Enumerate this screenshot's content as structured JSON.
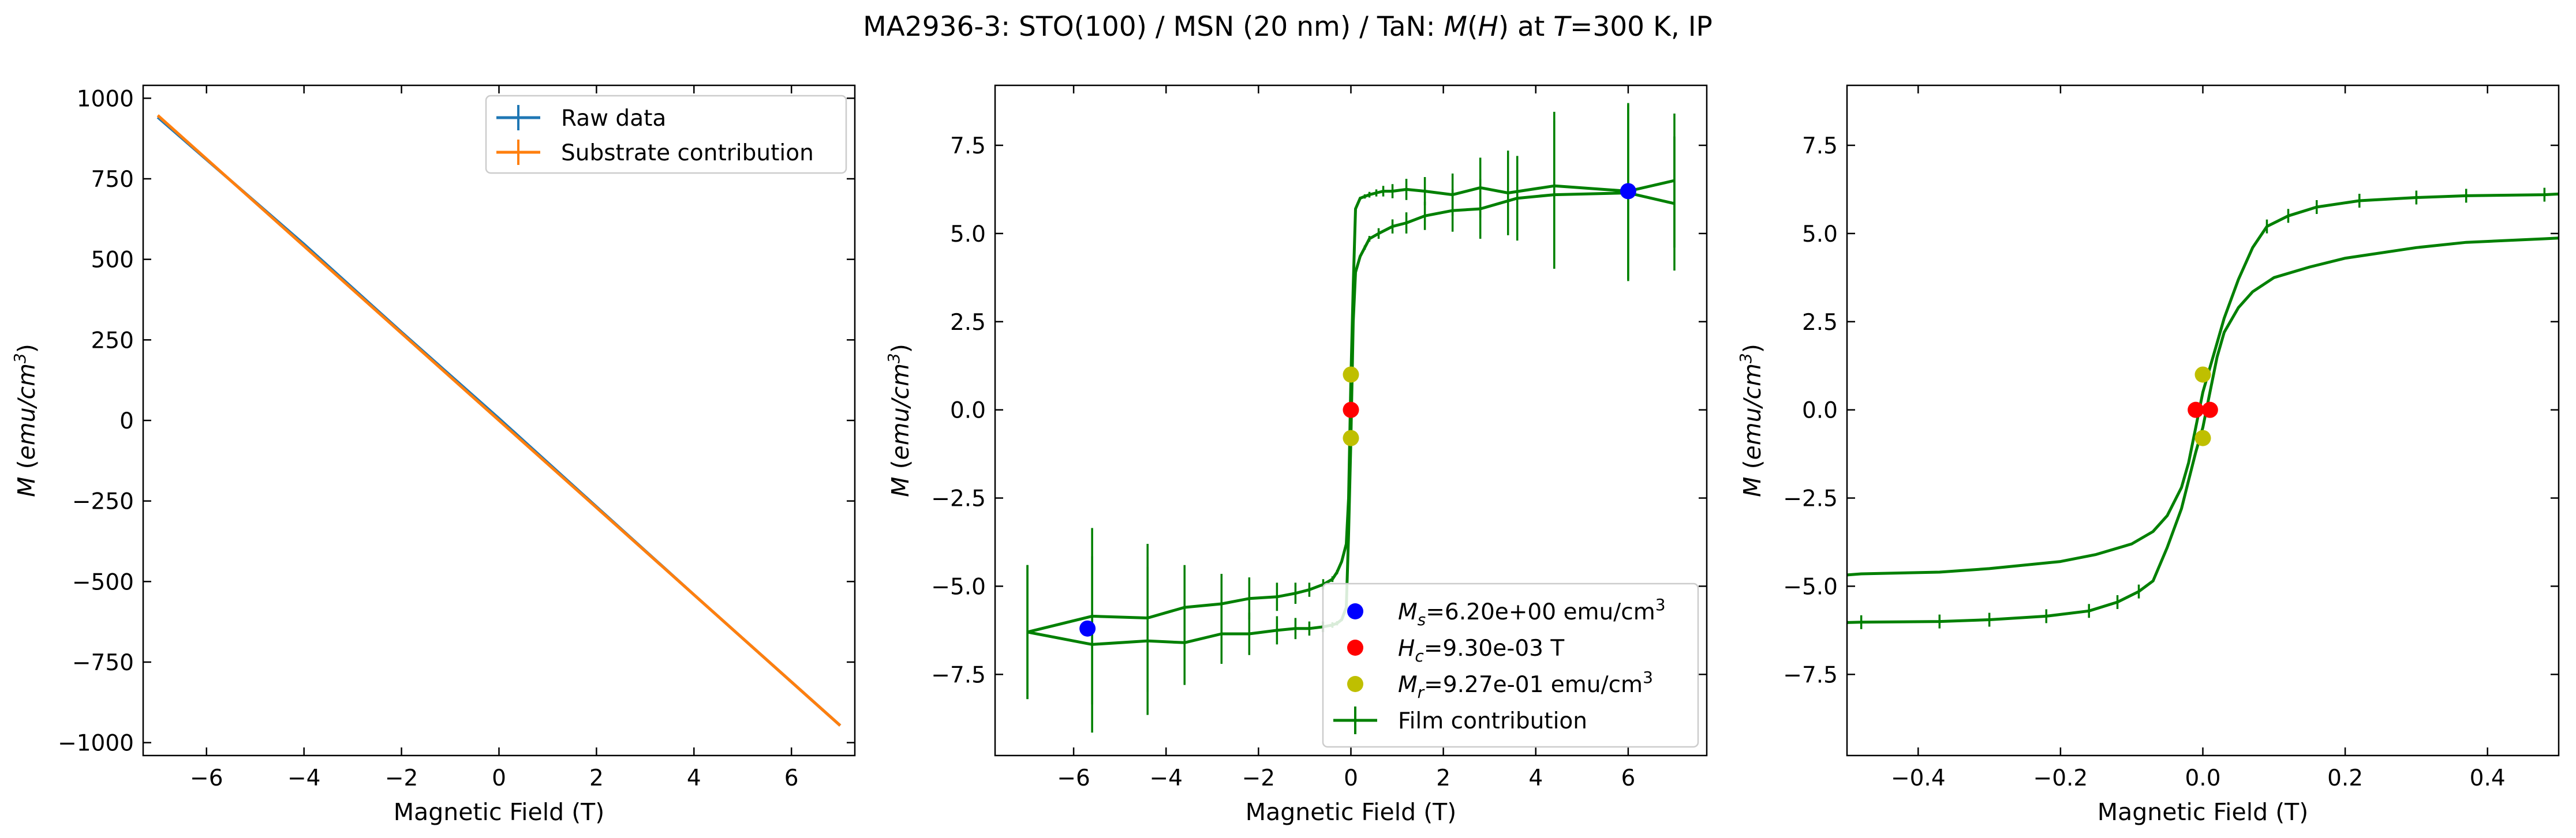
{
  "figure": {
    "title_parts": [
      "MA2936-3: STO(100)  / MSN (20 nm) / TaN: ",
      "M",
      "(",
      "H",
      ") at ",
      "T",
      "=300 K, IP"
    ]
  },
  "colors": {
    "raw": "#1f77b4",
    "substrate": "#ff7f0e",
    "film": "#008000",
    "ms": "#0000ff",
    "hc": "#ff0000",
    "mr": "#bfbf00"
  },
  "chart_data": [
    {
      "type": "line",
      "xlabel": "Magnetic Field (T)",
      "ylabel_parts": [
        "M",
        " (",
        "emu/cm",
        "3",
        ")"
      ],
      "xlim": [
        -7.3,
        7.3
      ],
      "ylim": [
        -1040,
        1040
      ],
      "xticks": [
        -6,
        -4,
        -2,
        0,
        2,
        4,
        6
      ],
      "xtick_labels": [
        "−6",
        "−4",
        "−2",
        "0",
        "2",
        "4",
        "6"
      ],
      "yticks": [
        -1000,
        -750,
        -500,
        -250,
        0,
        250,
        500,
        750,
        1000
      ],
      "ytick_labels": [
        "−1000",
        "−750",
        "−500",
        "−250",
        "0",
        "250",
        "500",
        "750",
        "1000"
      ],
      "legend": {
        "placement": "top-right",
        "entries": [
          "Raw data",
          "Substrate contribution"
        ]
      },
      "series": [
        {
          "name": "Raw data",
          "x": [
            -7,
            -4,
            -2,
            0,
            2,
            4,
            7
          ],
          "y": [
            941,
            547,
            274,
            6,
            -268,
            -541,
            -947
          ]
        },
        {
          "name": "Substrate contribution",
          "x": [
            -7,
            7
          ],
          "y": [
            947,
            -947
          ]
        }
      ]
    },
    {
      "type": "line",
      "xlabel": "Magnetic Field (T)",
      "ylabel_parts": [
        "M",
        " (",
        "emu/cm",
        "3",
        ")"
      ],
      "xlim": [
        -7.7,
        7.7
      ],
      "ylim": [
        -9.8,
        9.2
      ],
      "xticks": [
        -6,
        -4,
        -2,
        0,
        2,
        4,
        6
      ],
      "xtick_labels": [
        "−6",
        "−4",
        "−2",
        "0",
        "2",
        "4",
        "6"
      ],
      "yticks": [
        -7.5,
        -5,
        -2.5,
        0,
        2.5,
        5,
        7.5
      ],
      "ytick_labels": [
        "−7.5",
        "−5.0",
        "−2.5",
        "0.0",
        "2.5",
        "5.0",
        "7.5"
      ],
      "legend": {
        "placement": "bottom-right",
        "entries": [
          [
            "M",
            "s",
            "=6.20e+00 emu/cm",
            "3"
          ],
          [
            "H",
            "c",
            "=9.30e-03 T",
            ""
          ],
          [
            "M",
            "r",
            "=9.27e-01 emu/cm",
            "3"
          ],
          [
            "Film contribution",
            "",
            "",
            ""
          ]
        ]
      },
      "series": [
        {
          "name": "Film contribution (descending)",
          "x": [
            7.0,
            6.0,
            4.4,
            3.4,
            2.8,
            2.2,
            1.6,
            1.2,
            0.9,
            0.7,
            0.55,
            0.4,
            0.3,
            0.2,
            0.1,
            0.05,
            0.0,
            -0.05,
            -0.1,
            -0.2,
            -0.3,
            -0.4,
            -0.6,
            -0.9,
            -1.2,
            -1.6,
            -2.2,
            -2.8,
            -3.6,
            -4.4,
            -5.6,
            -7.0
          ],
          "y": [
            6.5,
            6.2,
            6.35,
            6.15,
            6.3,
            6.1,
            6.2,
            6.25,
            6.2,
            6.2,
            6.15,
            6.1,
            6.05,
            6.0,
            5.7,
            3.5,
            0.9,
            -2.5,
            -3.8,
            -4.3,
            -4.6,
            -4.8,
            -4.95,
            -5.1,
            -5.2,
            -5.3,
            -5.35,
            -5.5,
            -5.6,
            -5.9,
            -5.85,
            -6.3
          ],
          "yerr": [
            1.9,
            2.5,
            2.1,
            1.2,
            0.85,
            0.6,
            0.4,
            0.3,
            0.2,
            0.15,
            0.1,
            0.08,
            0.06,
            0.04,
            0.03,
            0.02,
            0.02,
            0.02,
            0.03,
            0.04,
            0.06,
            0.08,
            0.15,
            0.2,
            0.3,
            0.4,
            0.6,
            0.85,
            1.2,
            2.1,
            2.5,
            1.9
          ]
        },
        {
          "name": "Film contribution (ascending)",
          "x": [
            -7.0,
            -5.6,
            -4.4,
            -3.6,
            -2.8,
            -2.2,
            -1.6,
            -1.2,
            -0.9,
            -0.6,
            -0.4,
            -0.3,
            -0.2,
            -0.1,
            -0.05,
            0.0,
            0.05,
            0.1,
            0.2,
            0.3,
            0.4,
            0.6,
            0.9,
            1.2,
            1.6,
            2.2,
            2.8,
            3.6,
            4.4,
            6.0,
            7.0
          ],
          "y": [
            -6.3,
            -6.65,
            -6.55,
            -6.6,
            -6.35,
            -6.35,
            -6.25,
            -6.2,
            -6.2,
            -6.15,
            -6.1,
            -6.05,
            -5.95,
            -5.6,
            -3.5,
            -0.8,
            2.5,
            3.9,
            4.35,
            4.6,
            4.85,
            5.0,
            5.2,
            5.3,
            5.5,
            5.65,
            5.7,
            6.0,
            6.1,
            6.15,
            5.85
          ],
          "yerr": [
            1.9,
            2.5,
            2.1,
            1.2,
            0.85,
            0.6,
            0.4,
            0.3,
            0.2,
            0.15,
            0.08,
            0.06,
            0.04,
            0.03,
            0.02,
            0.02,
            0.02,
            0.03,
            0.04,
            0.06,
            0.08,
            0.15,
            0.2,
            0.3,
            0.4,
            0.6,
            0.85,
            1.2,
            2.1,
            2.5,
            1.9
          ]
        }
      ],
      "points": {
        "ms": [
          [
            6.0,
            6.2
          ],
          [
            -5.7,
            -6.2
          ]
        ],
        "hc": [
          [
            0.0,
            0.0
          ]
        ],
        "mr": [
          [
            0.0,
            1.0
          ],
          [
            0.0,
            -0.8
          ]
        ]
      }
    },
    {
      "type": "line",
      "xlabel": "Magnetic Field (T)",
      "ylabel_parts": [
        "M",
        " (",
        "emu/cm",
        "3",
        ")"
      ],
      "xlim": [
        -0.5,
        0.5
      ],
      "ylim": [
        -9.8,
        9.2
      ],
      "xticks": [
        -0.4,
        -0.2,
        0,
        0.2,
        0.4
      ],
      "xtick_labels": [
        "−0.4",
        "−0.2",
        "0.0",
        "0.2",
        "0.4"
      ],
      "yticks": [
        -7.5,
        -5,
        -2.5,
        0,
        2.5,
        5,
        7.5
      ],
      "ytick_labels": [
        "−7.5",
        "−5.0",
        "−2.5",
        "0.0",
        "2.5",
        "5.0",
        "7.5"
      ],
      "series": [
        {
          "name": "Film contribution (upper branch)",
          "x": [
            0.5,
            0.48,
            0.37,
            0.3,
            0.22,
            0.16,
            0.12,
            0.09,
            0.07,
            0.05,
            0.03,
            0.02,
            0.01,
            0.0,
            -0.01,
            -0.02,
            -0.03,
            -0.05,
            -0.07,
            -0.1,
            -0.15,
            -0.2,
            -0.3,
            -0.37,
            -0.48,
            -0.5
          ],
          "y": [
            6.12,
            6.1,
            6.07,
            6.02,
            5.93,
            5.75,
            5.5,
            5.2,
            4.6,
            3.7,
            2.6,
            1.9,
            1.2,
            0.5,
            -0.5,
            -1.5,
            -2.2,
            -3.0,
            -3.45,
            -3.8,
            -4.1,
            -4.3,
            -4.5,
            -4.6,
            -4.65,
            -4.68
          ],
          "errx": [
            0.48,
            0.37,
            0.3,
            0.22,
            0.16,
            0.12,
            0.09
          ]
        },
        {
          "name": "Film contribution (lower branch)",
          "x": [
            -0.5,
            -0.48,
            -0.37,
            -0.3,
            -0.22,
            -0.16,
            -0.12,
            -0.09,
            -0.07,
            -0.05,
            -0.03,
            -0.02,
            -0.01,
            0.0,
            0.01,
            0.02,
            0.03,
            0.05,
            0.07,
            0.1,
            0.15,
            0.2,
            0.3,
            0.37,
            0.48,
            0.5
          ],
          "y": [
            -6.03,
            -6.02,
            -6.0,
            -5.95,
            -5.85,
            -5.7,
            -5.45,
            -5.15,
            -4.85,
            -3.9,
            -2.8,
            -2.0,
            -1.2,
            -0.5,
            0.5,
            1.5,
            2.2,
            2.9,
            3.35,
            3.75,
            4.05,
            4.3,
            4.6,
            4.75,
            4.85,
            4.87
          ],
          "errx": [
            -0.48,
            -0.37,
            -0.3,
            -0.22,
            -0.16,
            -0.12,
            -0.09
          ]
        }
      ],
      "points": {
        "hc": [
          [
            -0.01,
            0.0
          ],
          [
            0.01,
            0.0
          ]
        ],
        "mr": [
          [
            0.0,
            1.0
          ],
          [
            0.0,
            -0.8
          ]
        ]
      }
    }
  ]
}
